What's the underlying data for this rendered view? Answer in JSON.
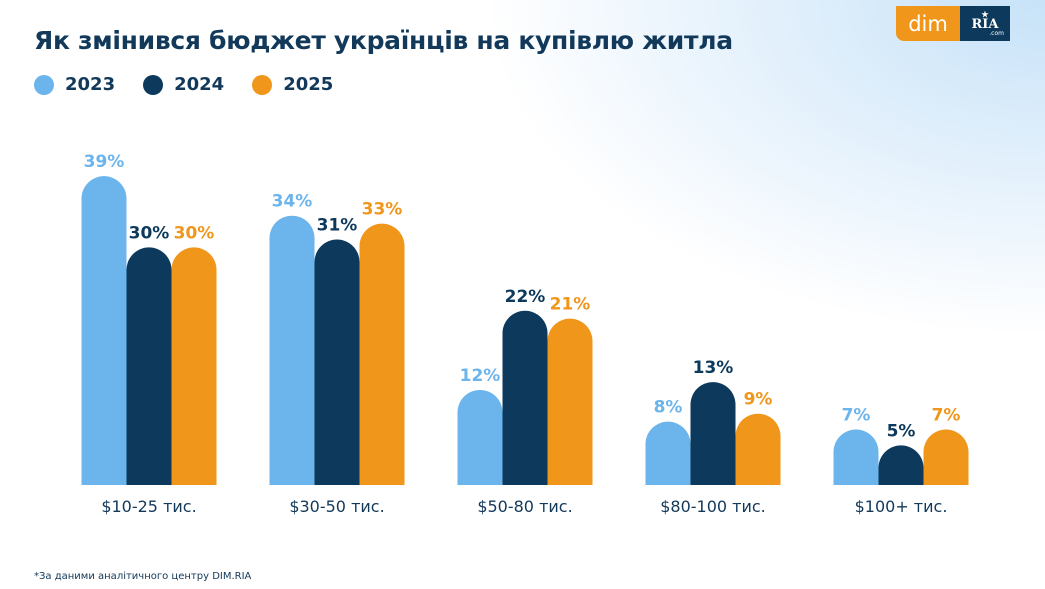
{
  "title": "Як змінився бюджет українців на купівлю житла",
  "logo": {
    "dim": "dim",
    "ria": "RIA",
    "ria_sub": ".com"
  },
  "footnote": "*За даними аналітичного центру DIM.RIA",
  "colors": {
    "2023": "#6cb4ec",
    "2024": "#0d3a5c",
    "2025": "#f0961a",
    "text": "#12385a"
  },
  "chart_data": {
    "type": "bar",
    "title": "Як змінився бюджет українців на купівлю житла",
    "categories": [
      "$10-25 тис.",
      "$30-50 тис.",
      "$50-80 тис.",
      "$80-100 тис.",
      "$100+ тис."
    ],
    "series": [
      {
        "name": "2023",
        "values": [
          39,
          34,
          12,
          8,
          7
        ]
      },
      {
        "name": "2024",
        "values": [
          30,
          31,
          22,
          13,
          5
        ]
      },
      {
        "name": "2025",
        "values": [
          30,
          33,
          21,
          9,
          7
        ]
      }
    ],
    "unit": "%",
    "ylim": [
      0,
      40
    ],
    "grid": false,
    "legend": "top-left"
  }
}
